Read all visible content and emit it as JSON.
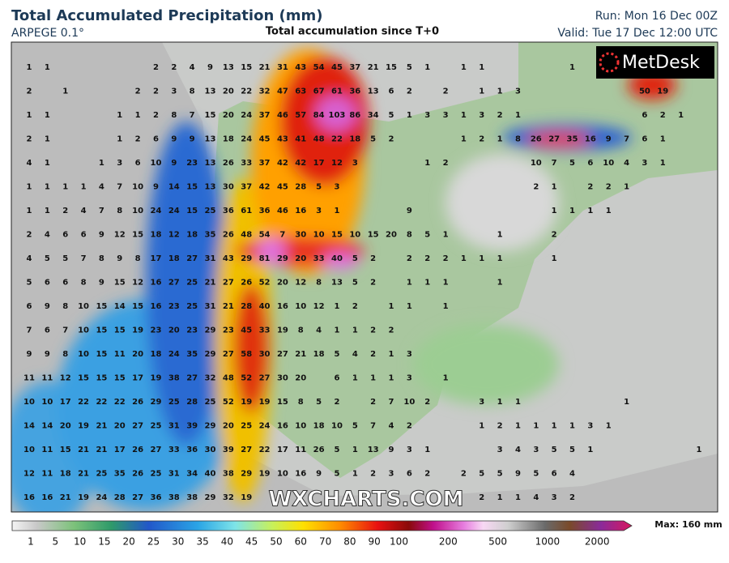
{
  "header": {
    "title": "Total Accumulated Precipitation (mm)",
    "model": "ARPEGE 0.1°",
    "subtitle": "Total accumulation since T+0",
    "run": "Run: Mon 16 Dec 00Z",
    "valid": "Valid: Tue 17 Dec 12:00 UTC"
  },
  "logo": "MetDesk",
  "watermark": "WXCHARTS.COM",
  "map": {
    "grid_values": [
      [
        1,
        1,
        null,
        null,
        null,
        null,
        null,
        2,
        2,
        4,
        9,
        13,
        15,
        21,
        31,
        43,
        54,
        45,
        37,
        21,
        15,
        5,
        1,
        null,
        1,
        1,
        null,
        null,
        null,
        null,
        1
      ],
      [
        2,
        null,
        1,
        null,
        null,
        null,
        2,
        2,
        3,
        8,
        13,
        20,
        22,
        32,
        47,
        63,
        67,
        61,
        36,
        13,
        6,
        2,
        null,
        2,
        null,
        1,
        1,
        3,
        null,
        null,
        null,
        null,
        null,
        null,
        50,
        19
      ],
      [
        1,
        1,
        null,
        null,
        null,
        1,
        1,
        2,
        8,
        7,
        15,
        20,
        24,
        37,
        46,
        57,
        84,
        103,
        86,
        34,
        5,
        1,
        3,
        3,
        1,
        3,
        2,
        1,
        null,
        null,
        null,
        null,
        null,
        null,
        6,
        2,
        1
      ],
      [
        2,
        1,
        null,
        null,
        null,
        1,
        2,
        6,
        9,
        9,
        13,
        18,
        24,
        45,
        43,
        41,
        48,
        22,
        18,
        5,
        2,
        null,
        null,
        null,
        1,
        2,
        1,
        8,
        26,
        27,
        35,
        16,
        9,
        7,
        6,
        1
      ],
      [
        4,
        1,
        null,
        null,
        1,
        3,
        6,
        10,
        9,
        23,
        13,
        26,
        33,
        37,
        42,
        42,
        17,
        12,
        3,
        null,
        null,
        null,
        1,
        2,
        null,
        null,
        null,
        null,
        10,
        7,
        5,
        6,
        10,
        4,
        3,
        1
      ],
      [
        1,
        1,
        1,
        1,
        4,
        7,
        10,
        9,
        14,
        15,
        13,
        30,
        37,
        42,
        45,
        28,
        5,
        3,
        null,
        null,
        null,
        null,
        null,
        null,
        null,
        null,
        null,
        null,
        2,
        1,
        null,
        2,
        2,
        1
      ],
      [
        1,
        1,
        2,
        4,
        7,
        8,
        10,
        24,
        24,
        15,
        25,
        36,
        61,
        36,
        46,
        16,
        3,
        1,
        null,
        null,
        null,
        9,
        null,
        null,
        null,
        null,
        null,
        null,
        null,
        1,
        1,
        1,
        1
      ],
      [
        2,
        4,
        6,
        6,
        9,
        12,
        15,
        18,
        12,
        18,
        35,
        26,
        48,
        54,
        7,
        30,
        10,
        15,
        10,
        15,
        20,
        8,
        5,
        1,
        null,
        null,
        1,
        null,
        null,
        2
      ],
      [
        4,
        5,
        5,
        7,
        8,
        9,
        8,
        17,
        18,
        27,
        31,
        43,
        29,
        81,
        29,
        20,
        33,
        40,
        5,
        2,
        null,
        2,
        2,
        2,
        1,
        1,
        1,
        null,
        null,
        1
      ],
      [
        5,
        6,
        6,
        8,
        9,
        15,
        12,
        16,
        27,
        25,
        21,
        27,
        26,
        52,
        20,
        12,
        8,
        13,
        5,
        2,
        null,
        1,
        1,
        1,
        null,
        null,
        1
      ],
      [
        6,
        9,
        8,
        10,
        15,
        14,
        15,
        16,
        23,
        25,
        31,
        21,
        28,
        40,
        16,
        10,
        12,
        1,
        2,
        null,
        1,
        1,
        null,
        1
      ],
      [
        7,
        6,
        7,
        10,
        15,
        15,
        19,
        23,
        20,
        23,
        29,
        23,
        45,
        33,
        19,
        8,
        4,
        1,
        1,
        2,
        2
      ],
      [
        9,
        9,
        8,
        10,
        15,
        11,
        20,
        18,
        24,
        35,
        29,
        27,
        58,
        30,
        27,
        21,
        18,
        5,
        4,
        2,
        1,
        3
      ],
      [
        11,
        11,
        12,
        15,
        15,
        15,
        17,
        19,
        38,
        27,
        32,
        48,
        52,
        27,
        30,
        20,
        null,
        6,
        1,
        1,
        1,
        3,
        null,
        1
      ],
      [
        10,
        10,
        17,
        22,
        22,
        22,
        26,
        29,
        25,
        28,
        25,
        52,
        19,
        19,
        15,
        8,
        5,
        2,
        null,
        2,
        7,
        10,
        2,
        null,
        null,
        3,
        1,
        1,
        null,
        null,
        null,
        null,
        null,
        1
      ],
      [
        14,
        14,
        20,
        19,
        21,
        20,
        27,
        25,
        31,
        39,
        29,
        20,
        25,
        24,
        16,
        10,
        18,
        10,
        5,
        7,
        4,
        2,
        null,
        null,
        null,
        1,
        2,
        1,
        1,
        1,
        1,
        3,
        1
      ],
      [
        10,
        11,
        15,
        21,
        21,
        17,
        26,
        27,
        33,
        36,
        30,
        39,
        27,
        22,
        17,
        11,
        26,
        5,
        1,
        13,
        9,
        3,
        1,
        null,
        null,
        null,
        3,
        4,
        3,
        5,
        5,
        1,
        null,
        null,
        null,
        null,
        null,
        1
      ],
      [
        12,
        11,
        18,
        21,
        25,
        35,
        26,
        25,
        31,
        34,
        40,
        38,
        29,
        19,
        10,
        16,
        9,
        5,
        1,
        2,
        3,
        6,
        2,
        null,
        2,
        5,
        5,
        9,
        5,
        6,
        4
      ],
      [
        16,
        16,
        21,
        19,
        24,
        28,
        27,
        36,
        38,
        38,
        29,
        32,
        19,
        null,
        null,
        null,
        null,
        null,
        null,
        null,
        null,
        null,
        null,
        null,
        null,
        2,
        1,
        1,
        4,
        3,
        2
      ]
    ]
  },
  "colorbar": {
    "labels": [
      1,
      5,
      10,
      15,
      20,
      25,
      30,
      35,
      40,
      45,
      50,
      60,
      70,
      80,
      90,
      100,
      200,
      500,
      1000,
      2000
    ],
    "max_label": "Max: 160 mm"
  }
}
